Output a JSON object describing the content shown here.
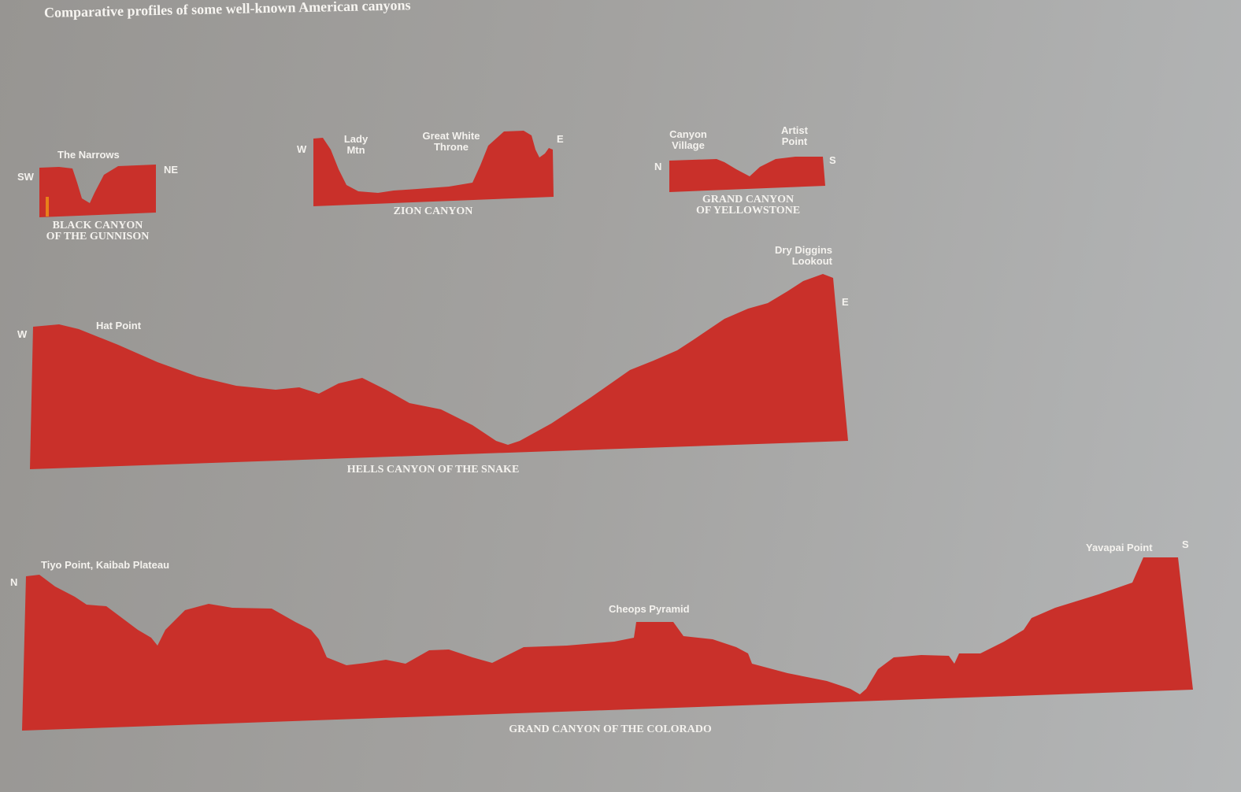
{
  "title": "Comparative profiles of some well-known American canyons",
  "colors": {
    "profile": "#c9302a",
    "river": "#e8801a",
    "background": "#a3a2a0",
    "text": "#f4f2ee"
  },
  "profiles": {
    "black": {
      "name_line1": "BLACK CANYON",
      "name_line2": "OF  THE GUNNISON",
      "left": "SW",
      "right": "NE",
      "landmarks": [
        "The Narrows"
      ]
    },
    "zion": {
      "name": "ZION CANYON",
      "left": "W",
      "right": "E",
      "landmarks": [
        [
          "Lady",
          "Mtn"
        ],
        [
          "Great White",
          "Throne"
        ]
      ]
    },
    "yellowstone": {
      "name_line1": "GRAND CANYON",
      "name_line2": "OF YELLOWSTONE",
      "left": "N",
      "right": "S",
      "landmarks": [
        [
          "Canyon",
          "Village"
        ],
        [
          "Artist",
          "Point"
        ]
      ]
    },
    "hells": {
      "name": "HELLS CANYON OF THE SNAKE",
      "left": "W",
      "right": "E",
      "landmarks": [
        "Hat Point",
        [
          "Dry Diggins",
          "Lookout"
        ]
      ]
    },
    "grand": {
      "name": "GRAND CANYON OF THE COLORADO",
      "left": "N",
      "right": "S",
      "landmarks": [
        "Tiyo Point, Kaibab Plateau",
        "Cheops Pyramid",
        "Yavapai Point"
      ]
    }
  }
}
